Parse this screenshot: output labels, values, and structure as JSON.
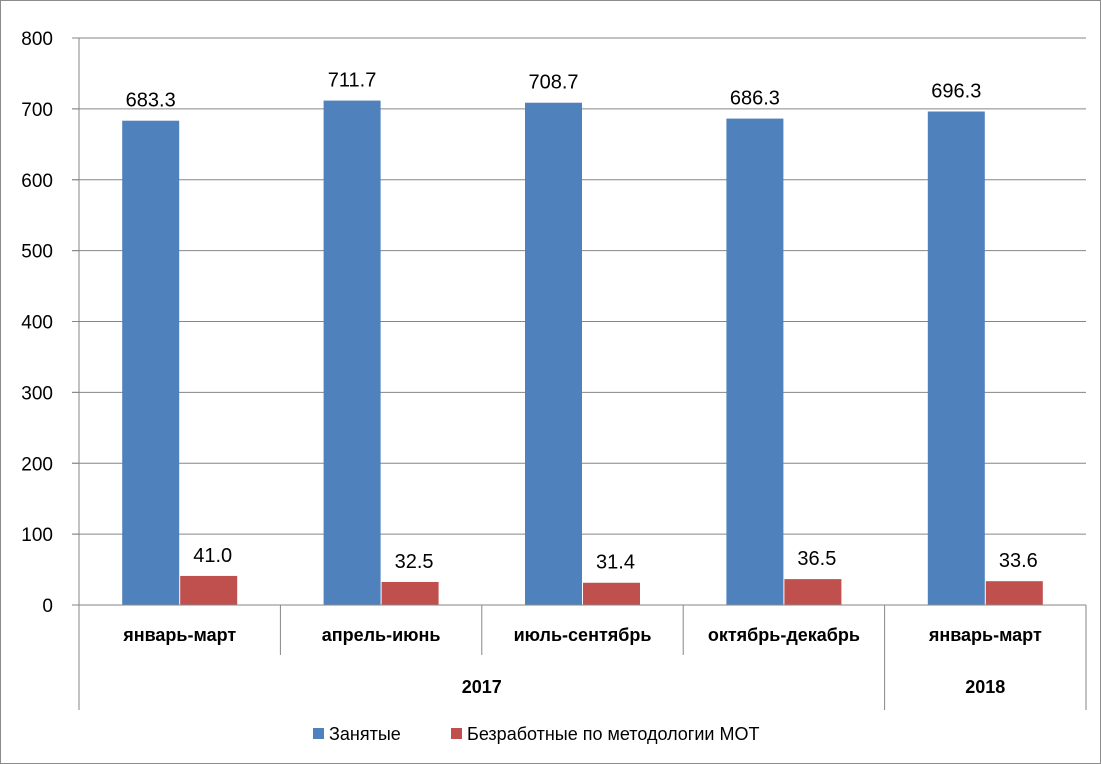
{
  "chart_data": {
    "type": "bar",
    "categories": [
      "январь-март",
      "апрель-июнь",
      "июль-сентябрь",
      "октябрь-декабрь",
      "январь-март"
    ],
    "groups": [
      {
        "label": "2017",
        "span": 4
      },
      {
        "label": "2018",
        "span": 1
      }
    ],
    "series": [
      {
        "name": "Занятые",
        "values": [
          683.3,
          711.7,
          708.7,
          686.3,
          696.3
        ],
        "labels": [
          "683.3",
          "711.7",
          "708.7",
          "686.3",
          "696.3"
        ],
        "color": "#4f81bd"
      },
      {
        "name": "Безработные по методологии МОТ",
        "values": [
          41.0,
          32.5,
          31.4,
          36.5,
          33.6
        ],
        "labels": [
          "41.0",
          "32.5",
          "31.4",
          "36.5",
          "33.6"
        ],
        "color": "#c0504d"
      }
    ],
    "ylim": [
      0,
      800
    ],
    "yticks": [
      0,
      100,
      200,
      300,
      400,
      500,
      600,
      700,
      800
    ],
    "grid": true,
    "legend": "bottom"
  }
}
